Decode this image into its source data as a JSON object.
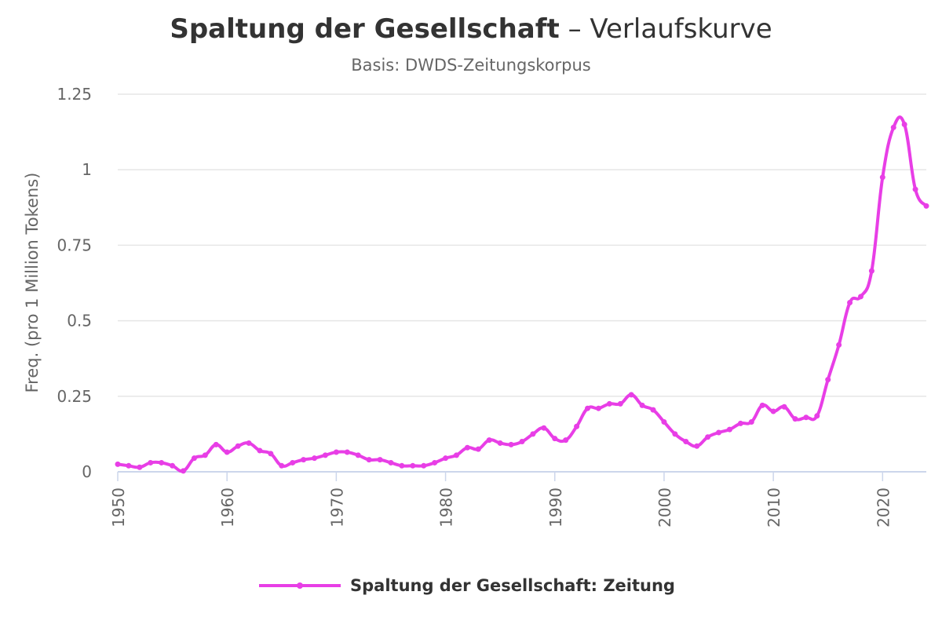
{
  "chart_data": {
    "type": "line",
    "title_main": "Spaltung der Gesellschaft",
    "title_suffix": " – Verlaufskurve",
    "subtitle": "Basis: DWDS-Zeitungskorpus",
    "xlabel": "",
    "ylabel": "Freq. (pro 1 Million Tokens)",
    "xlim": [
      1950,
      2024
    ],
    "ylim": [
      0,
      1.25
    ],
    "x_ticks": [
      1950,
      1960,
      1970,
      1980,
      1990,
      2000,
      2010,
      2020
    ],
    "y_ticks": [
      0,
      0.25,
      0.5,
      0.75,
      1,
      1.25
    ],
    "y_tick_labels": [
      "0",
      "0.25",
      "0.5",
      "0.75",
      "1",
      "1.25"
    ],
    "grid": true,
    "legend_position": "bottom-center",
    "series": [
      {
        "name": "Spaltung der Gesellschaft: Zeitung",
        "color": "#e83ee6",
        "x": [
          1950,
          1951,
          1952,
          1953,
          1954,
          1955,
          1956,
          1957,
          1958,
          1959,
          1960,
          1961,
          1962,
          1963,
          1964,
          1965,
          1966,
          1967,
          1968,
          1969,
          1970,
          1971,
          1972,
          1973,
          1974,
          1975,
          1976,
          1977,
          1978,
          1979,
          1980,
          1981,
          1982,
          1983,
          1984,
          1985,
          1986,
          1987,
          1988,
          1989,
          1990,
          1991,
          1992,
          1993,
          1994,
          1995,
          1996,
          1997,
          1998,
          1999,
          2000,
          2001,
          2002,
          2003,
          2004,
          2005,
          2006,
          2007,
          2008,
          2009,
          2010,
          2011,
          2012,
          2013,
          2014,
          2015,
          2016,
          2017,
          2018,
          2019,
          2020,
          2021,
          2022,
          2023,
          2024
        ],
        "values": [
          0.025,
          0.02,
          0.015,
          0.03,
          0.03,
          0.02,
          0.003,
          0.045,
          0.055,
          0.09,
          0.065,
          0.085,
          0.095,
          0.07,
          0.06,
          0.02,
          0.03,
          0.04,
          0.045,
          0.055,
          0.065,
          0.065,
          0.055,
          0.04,
          0.04,
          0.03,
          0.02,
          0.02,
          0.02,
          0.03,
          0.045,
          0.055,
          0.08,
          0.075,
          0.105,
          0.095,
          0.09,
          0.1,
          0.125,
          0.145,
          0.11,
          0.105,
          0.15,
          0.21,
          0.21,
          0.225,
          0.225,
          0.255,
          0.22,
          0.205,
          0.165,
          0.125,
          0.1,
          0.085,
          0.115,
          0.13,
          0.14,
          0.16,
          0.165,
          0.22,
          0.2,
          0.215,
          0.175,
          0.18,
          0.185,
          0.305,
          0.42,
          0.56,
          0.58,
          0.665,
          0.975,
          1.14,
          1.15,
          0.935,
          0.88
        ]
      }
    ]
  }
}
